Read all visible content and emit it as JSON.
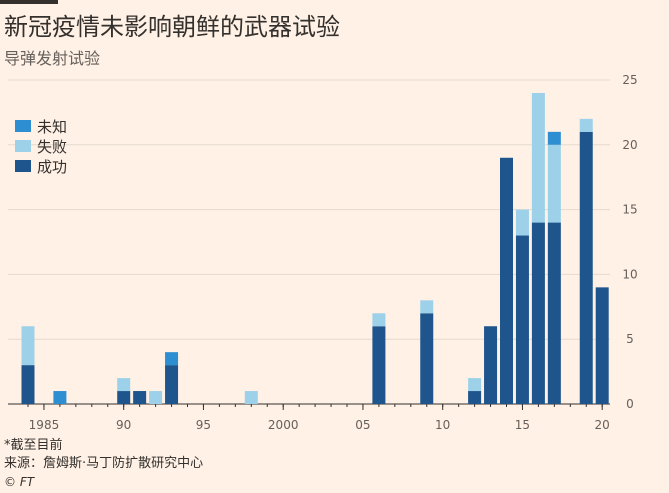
{
  "chart_data": {
    "type": "bar",
    "stacked": true,
    "title": "新冠疫情未影响朝鲜的武器试验",
    "subtitle": "导弹发射试验",
    "x": [
      1984,
      1985,
      1986,
      1987,
      1988,
      1989,
      1990,
      1991,
      1992,
      1993,
      1994,
      1995,
      1996,
      1997,
      1998,
      1999,
      2000,
      2001,
      2002,
      2003,
      2004,
      2005,
      2006,
      2007,
      2008,
      2009,
      2010,
      2011,
      2012,
      2013,
      2014,
      2015,
      2016,
      2017,
      2018,
      2019,
      2020
    ],
    "x_tick_values": [
      1985,
      1990,
      1995,
      2000,
      2005,
      2010,
      2015,
      2020
    ],
    "x_tick_labels": [
      "1985",
      "90",
      "95",
      "2000",
      "05",
      "10",
      "15",
      "20"
    ],
    "y_ticks": [
      0,
      5,
      10,
      15,
      20,
      25
    ],
    "ylim": [
      0,
      25
    ],
    "grid": true,
    "legend_position": "top-left",
    "series": [
      {
        "name": "成功",
        "color": "#1E558C",
        "values": [
          3,
          0,
          0,
          0,
          0,
          0,
          1,
          1,
          0,
          3,
          0,
          0,
          0,
          0,
          0,
          0,
          0,
          0,
          0,
          0,
          0,
          0,
          6,
          0,
          0,
          7,
          0,
          0,
          1,
          6,
          19,
          13,
          14,
          14,
          0,
          21,
          9
        ]
      },
      {
        "name": "失败",
        "color": "#9CD1E9",
        "values": [
          3,
          0,
          0,
          0,
          0,
          0,
          1,
          0,
          1,
          0,
          0,
          0,
          0,
          0,
          1,
          0,
          0,
          0,
          0,
          0,
          0,
          0,
          1,
          0,
          0,
          1,
          0,
          0,
          1,
          0,
          0,
          2,
          10,
          6,
          0,
          1,
          0
        ]
      },
      {
        "name": "未知",
        "color": "#2D8FD1",
        "values": [
          0,
          0,
          1,
          0,
          0,
          0,
          0,
          0,
          0,
          1,
          0,
          0,
          0,
          0,
          0,
          0,
          0,
          0,
          0,
          0,
          0,
          0,
          0,
          0,
          0,
          0,
          0,
          0,
          0,
          0,
          0,
          0,
          0,
          1,
          0,
          0,
          0
        ]
      }
    ],
    "legend_order": [
      "未知",
      "失败",
      "成功"
    ]
  },
  "legend": {
    "unknown": "未知",
    "failure": "失败",
    "success": "成功"
  },
  "note": "*截至目前",
  "source": "来源：詹姆斯·马丁防扩散研究中心",
  "copyright": "© FT"
}
